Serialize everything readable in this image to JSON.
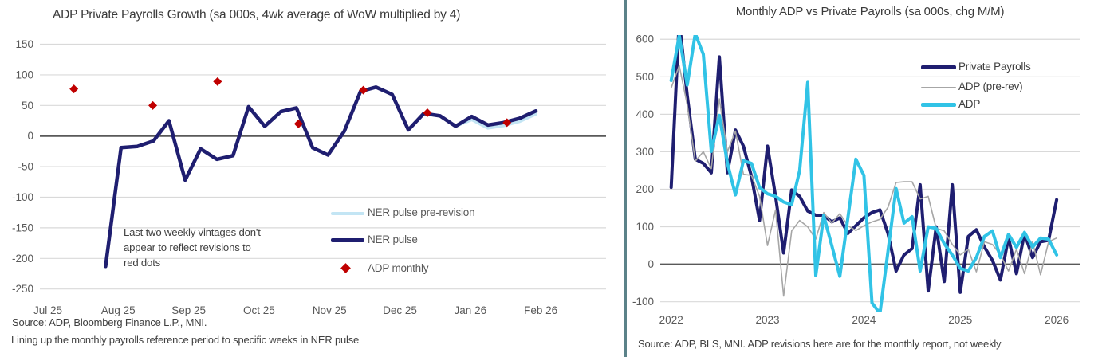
{
  "colors": {
    "navy": "#1f1e70",
    "cyan": "#31c3e6",
    "light_blue": "#c3e5f4",
    "red": "#c00000",
    "gray": "#a6a6a6",
    "gridline": "#d9d9d9",
    "zero_line": "#595959",
    "tick_text": "#595959",
    "text": "#404040",
    "legend_text_left": "#595959",
    "legend_text_right": "#404040",
    "divider": "#5b8289",
    "background": "#ffffff"
  },
  "chart_data": [
    {
      "id": "left-chart",
      "type": "line",
      "title": "ADP Private Payrolls Growth (sa 000s, 4wk average of WoW multiplied by 4)",
      "xlabel": "",
      "ylabel": "",
      "x_unit": "months since Jul 2025",
      "xlim": [
        -0.113,
        7.927
      ],
      "ylim": [
        -259.5,
        165
      ],
      "grid": true,
      "legend_position": "lower right inside plot",
      "plot": {
        "l": 50,
        "r": 760,
        "t": 44,
        "b": 370
      },
      "x_label_y": 394,
      "yticks": [
        150,
        100,
        50,
        0,
        -50,
        -100,
        -150,
        -200,
        -250
      ],
      "xticks": [
        {
          "x": 0,
          "label": "Jul 25"
        },
        {
          "x": 1,
          "label": "Aug 25"
        },
        {
          "x": 2,
          "label": "Sep 25"
        },
        {
          "x": 3,
          "label": "Oct 25"
        },
        {
          "x": 4,
          "label": "Nov 25"
        },
        {
          "x": 5,
          "label": "Dec 25"
        },
        {
          "x": 6,
          "label": "Jan 26"
        },
        {
          "x": 7,
          "label": "Feb 26"
        }
      ],
      "series": [
        {
          "name": "NER pulse pre-revision",
          "key": "ner-pulse-pre-revision-line",
          "color": "light_blue",
          "width": 4,
          "x": [
            0.82,
            1.04,
            1.27,
            1.5,
            1.72,
            1.95,
            2.17,
            2.4,
            2.63,
            2.85,
            3.08,
            3.31,
            3.53,
            3.76,
            3.98,
            4.21,
            4.44,
            4.66,
            4.89,
            5.12,
            5.34,
            5.57,
            5.79,
            6.02,
            6.25,
            6.47,
            6.7,
            6.93
          ],
          "y": [
            -213,
            -19,
            -17,
            -8,
            25,
            -72,
            -21,
            -38,
            -32,
            48,
            16,
            40,
            46,
            -19,
            -31,
            8,
            73,
            80,
            68,
            10,
            37,
            33,
            16,
            27,
            13,
            17,
            24,
            36
          ]
        },
        {
          "name": "NER pulse",
          "key": "ner-pulse-line",
          "color": "navy",
          "width": 4.5,
          "x": [
            0.82,
            1.04,
            1.27,
            1.5,
            1.72,
            1.95,
            2.17,
            2.4,
            2.63,
            2.85,
            3.08,
            3.31,
            3.53,
            3.76,
            3.98,
            4.21,
            4.44,
            4.66,
            4.89,
            5.12,
            5.34,
            5.57,
            5.79,
            6.02,
            6.25,
            6.47,
            6.7,
            6.93
          ],
          "y": [
            -213,
            -19,
            -17,
            -8,
            25,
            -72,
            -21,
            -38,
            -32,
            48,
            16,
            40,
            46,
            -19,
            -31,
            8,
            73,
            80,
            68,
            10,
            37,
            33,
            16,
            32,
            18,
            22,
            29,
            41
          ]
        },
        {
          "name": "ADP monthly",
          "key": "adp-monthly-diamonds",
          "color": "red",
          "marker": "diamond",
          "x": [
            0.37,
            1.49,
            2.41,
            3.56,
            4.48,
            5.39,
            6.52
          ],
          "y": [
            77,
            50,
            89,
            20,
            75,
            38,
            22
          ]
        }
      ],
      "annotation": {
        "lines": [
          "Last two weekly vintages don't",
          "appear to reflect revisions to",
          "red dots"
        ]
      },
      "sources": [
        "Source: ADP, Bloomberg Finance L.P., MNI.",
        "Lining up the monthly payrolls reference period to specific weeks in NER pulse"
      ]
    },
    {
      "id": "right-chart",
      "type": "line",
      "title": "Monthly ADP vs Private Payrolls (sa 000s, chg M/M)",
      "xlabel": "",
      "ylabel": "",
      "x_unit": "months since Jan 2022",
      "xlim": [
        -1.36,
        50.97
      ],
      "ylim": [
        -124,
        609
      ],
      "grid": true,
      "legend_position": "upper right inside plot",
      "plot": {
        "l": 38,
        "r": 565,
        "t": 45,
        "b": 390
      },
      "x_label_y": 406,
      "yticks": [
        600,
        500,
        400,
        300,
        200,
        100,
        0,
        -100
      ],
      "xticks": [
        {
          "x": 0,
          "label": "2022"
        },
        {
          "x": 12,
          "label": "2023"
        },
        {
          "x": 24,
          "label": "2024"
        },
        {
          "x": 36,
          "label": "2025"
        },
        {
          "x": 48,
          "label": "2026"
        }
      ],
      "series": [
        {
          "name": "Private Payrolls",
          "key": "private-payrolls-line",
          "color": "navy",
          "width": 4,
          "y": [
            205,
            650,
            450,
            280,
            269,
            244,
            553,
            244,
            358,
            315,
            234,
            117,
            315,
            181,
            30,
            198,
            181,
            142,
            131,
            131,
            113,
            124,
            82,
            103,
            124,
            138,
            145,
            82,
            -18,
            25,
            42,
            212,
            -71,
            100,
            -46,
            212,
            -75,
            74,
            92,
            46,
            11,
            -42,
            71,
            -25,
            82,
            18,
            60,
            64,
            172
          ]
        },
        {
          "name": "ADP (pre-rev)",
          "key": "adp-pre-rev-line",
          "color": "gray",
          "width": 1.6,
          "y": [
            470,
            530,
            425,
            275,
            300,
            255,
            441,
            300,
            355,
            240,
            237,
            181,
            50,
            145,
            -85,
            89,
            117,
            100,
            67,
            138,
            110,
            135,
            103,
            90,
            103,
            113,
            120,
            152,
            218,
            220,
            220,
            174,
            181,
            96,
            89,
            53,
            25,
            40,
            -20,
            60,
            53,
            25,
            -18,
            40,
            -25,
            60,
            -28,
            60,
            70
          ]
        },
        {
          "name": "ADP",
          "key": "adp-line",
          "color": "cyan",
          "width": 4,
          "y": [
            490,
            610,
            478,
            615,
            560,
            301,
            397,
            270,
            185,
            276,
            269,
            205,
            188,
            181,
            166,
            159,
            250,
            485,
            -30,
            130,
            50,
            -32,
            124,
            280,
            237,
            -103,
            -131,
            35,
            202,
            110,
            127,
            -18,
            100,
            96,
            55,
            25,
            -11,
            -18,
            18,
            74,
            89,
            18,
            80,
            45,
            85,
            46,
            70,
            67,
            25
          ]
        }
      ],
      "sources": [
        "Source: ADP, BLS, MNI. ADP revisions here are for the monthly report, not weekly"
      ]
    }
  ]
}
